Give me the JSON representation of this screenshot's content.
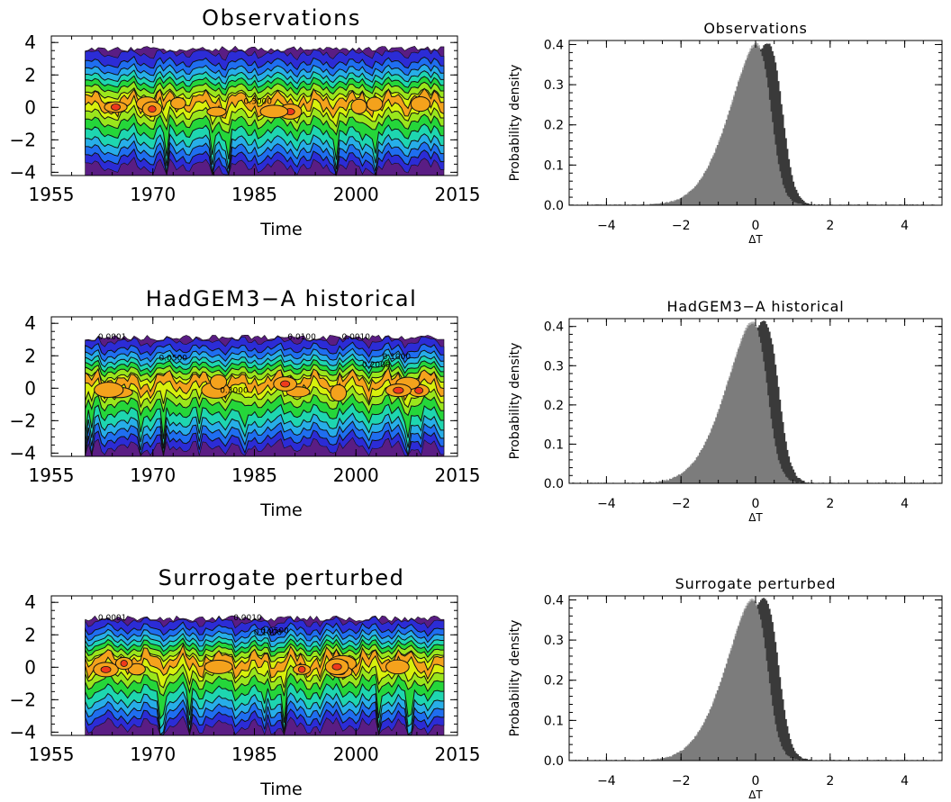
{
  "chart_data": [
    {
      "type": "heatmap",
      "title": "Observations",
      "xlabel": "Time",
      "ylabel": "",
      "xticks": [
        "1955",
        "1970",
        "1985",
        "2000",
        "2015"
      ],
      "yticks": [
        "4",
        "2",
        "0",
        "−2",
        "−4"
      ],
      "xlim": [
        1955,
        2015
      ],
      "ylim": [
        -4.2,
        4.4
      ],
      "data_x_range": [
        1960,
        2013
      ],
      "data_y_range": [
        -4.2,
        3.6
      ],
      "contour_labels": [
        {
          "text": "0.3000",
          "x": 1985.5,
          "y": 0.2
        }
      ],
      "colormap": [
        "#5a1d84",
        "#2c2cd6",
        "#1f6ef0",
        "#27aee8",
        "#1ed6b0",
        "#25d63a",
        "#9ae61c",
        "#d8f00c",
        "#f4a21c",
        "#ef3a1c"
      ]
    },
    {
      "type": "bar",
      "title": "Observations",
      "xlabel": "ΔT",
      "ylabel": "Probability density",
      "xticks": [
        "−4",
        "−2",
        "0",
        "2",
        "4"
      ],
      "yticks": [
        "0.0",
        "0.1",
        "0.2",
        "0.3",
        "0.4"
      ],
      "xlim": [
        -5,
        5
      ],
      "ylim": [
        0,
        0.41
      ],
      "series": [
        {
          "color": "#b3b3b3",
          "mean": 0.4,
          "sd": 0.95,
          "skew": -3.5
        },
        {
          "color": "#3a3a3a",
          "mean": 0.7,
          "sd": 0.95,
          "skew": -3.5
        },
        {
          "color": "#7c7c7c",
          "mean": 0.4,
          "sd": 0.95,
          "skew": -3.5
        }
      ]
    },
    {
      "type": "heatmap",
      "title": "HadGEM3−A historical",
      "xlabel": "Time",
      "ylabel": "",
      "xticks": [
        "1955",
        "1970",
        "1985",
        "2000",
        "2015"
      ],
      "yticks": [
        "4",
        "2",
        "0",
        "−2",
        "−4"
      ],
      "xlim": [
        1955,
        2015
      ],
      "ylim": [
        -4.2,
        4.4
      ],
      "data_x_range": [
        1960,
        2013
      ],
      "data_y_range": [
        -4.2,
        3.1
      ],
      "contour_labels": [
        {
          "text": "0.0001",
          "x": 1964,
          "y": 3.0
        },
        {
          "text": "0.0100",
          "x": 1992,
          "y": 3.0
        },
        {
          "text": "0.0010",
          "x": 2000,
          "y": 3.0
        },
        {
          "text": "0.0500",
          "x": 1973,
          "y": 1.7
        },
        {
          "text": "0.1000",
          "x": 2006,
          "y": 1.8
        },
        {
          "text": "0.2000",
          "x": 2003,
          "y": 1.3
        },
        {
          "text": "0.3000",
          "x": 1982,
          "y": -0.3
        }
      ],
      "colormap": [
        "#5a1d84",
        "#2c2cd6",
        "#1f6ef0",
        "#27aee8",
        "#1ed6b0",
        "#25d63a",
        "#9ae61c",
        "#d8f00c",
        "#f4a21c",
        "#ef3a1c"
      ]
    },
    {
      "type": "bar",
      "title": "HadGEM3−A historical",
      "xlabel": "ΔT",
      "ylabel": "Probability density",
      "xticks": [
        "−4",
        "−2",
        "0",
        "2",
        "4"
      ],
      "yticks": [
        "0.0",
        "0.1",
        "0.2",
        "0.3",
        "0.4"
      ],
      "xlim": [
        -5,
        5
      ],
      "ylim": [
        0,
        0.42
      ],
      "series": [
        {
          "color": "#b3b3b3",
          "mean": 0.3,
          "sd": 0.95,
          "skew": -3.5
        },
        {
          "color": "#3a3a3a",
          "mean": 0.6,
          "sd": 0.95,
          "skew": -3.5
        },
        {
          "color": "#7c7c7c",
          "mean": 0.3,
          "sd": 0.95,
          "skew": -3.5
        }
      ]
    },
    {
      "type": "heatmap",
      "title": "Surrogate perturbed",
      "xlabel": "Time",
      "ylabel": "",
      "xticks": [
        "1955",
        "1970",
        "1985",
        "2000",
        "2015"
      ],
      "yticks": [
        "4",
        "2",
        "0",
        "−2",
        "−4"
      ],
      "xlim": [
        1955,
        2015
      ],
      "ylim": [
        -4.2,
        4.4
      ],
      "data_x_range": [
        1960,
        2013
      ],
      "data_y_range": [
        -4.2,
        3.0
      ],
      "contour_labels": [
        {
          "text": "0.0001",
          "x": 1964,
          "y": 2.9
        },
        {
          "text": "0.0010",
          "x": 1984,
          "y": 2.9
        },
        {
          "text": "0.1000",
          "x": 1987,
          "y": 2.0
        },
        {
          "text": "0.0500",
          "x": 1988,
          "y": 2.1
        }
      ],
      "colormap": [
        "#5a1d84",
        "#2c2cd6",
        "#1f6ef0",
        "#27aee8",
        "#1ed6b0",
        "#25d63a",
        "#9ae61c",
        "#d8f00c",
        "#f4a21c",
        "#ef3a1c"
      ]
    },
    {
      "type": "bar",
      "title": "Surrogate perturbed",
      "xlabel": "ΔT",
      "ylabel": "Probability density",
      "xticks": [
        "−4",
        "−2",
        "0",
        "2",
        "4"
      ],
      "yticks": [
        "0.0",
        "0.1",
        "0.2",
        "0.3",
        "0.4"
      ],
      "xlim": [
        -5,
        5
      ],
      "ylim": [
        0,
        0.41
      ],
      "series": [
        {
          "color": "#b3b3b3",
          "mean": 0.3,
          "sd": 0.95,
          "skew": -3.5
        },
        {
          "color": "#3a3a3a",
          "mean": 0.6,
          "sd": 0.95,
          "skew": -3.5
        },
        {
          "color": "#7c7c7c",
          "mean": 0.3,
          "sd": 0.95,
          "skew": -3.5
        }
      ]
    }
  ]
}
